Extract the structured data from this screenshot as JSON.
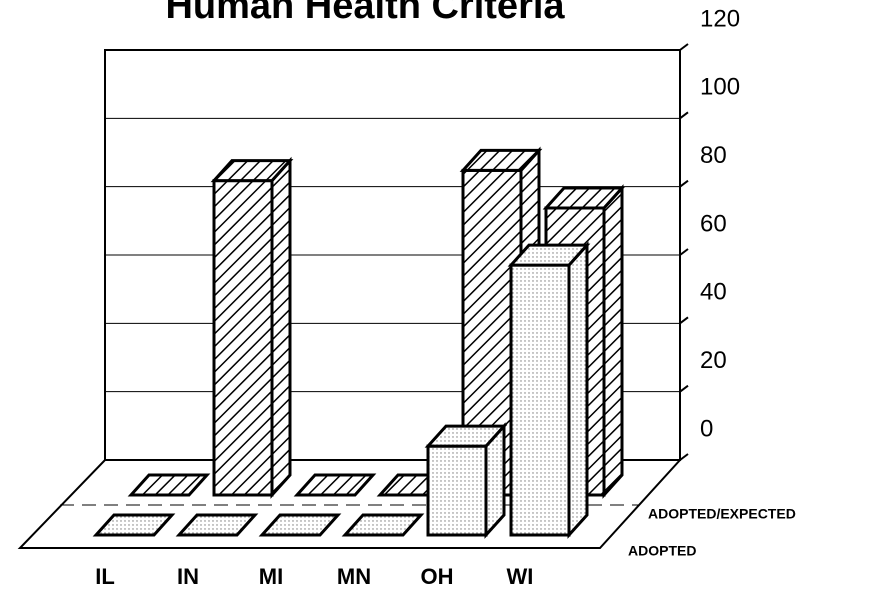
{
  "chart_data": {
    "type": "bar3d",
    "title": "Human Health Criteria",
    "categories": [
      "IL",
      "IN",
      "MI",
      "MN",
      "OH",
      "WI"
    ],
    "series": [
      {
        "name": "ADOPTED",
        "color": "#000000",
        "pattern": "dots",
        "values": [
          0,
          0,
          0,
          0,
          26,
          79
        ]
      },
      {
        "name": "ADOPTED/EXPECTED",
        "color": "#000000",
        "pattern": "hatch",
        "values": [
          0,
          92,
          0,
          0,
          95,
          84
        ]
      }
    ],
    "ylim": [
      0,
      120
    ],
    "yticks": [
      0,
      20,
      40,
      60,
      80,
      100,
      120
    ],
    "grid": true
  }
}
